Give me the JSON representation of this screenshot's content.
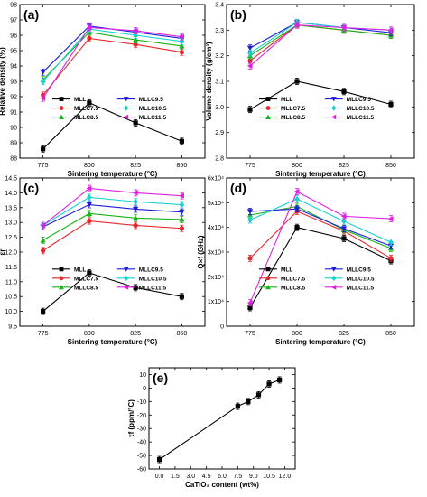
{
  "chart_data": [
    {
      "panel": "(a)",
      "type": "line",
      "x": [
        775,
        800,
        825,
        850
      ],
      "xlabel": "Sintering temperature (°C)",
      "ylabel": "Relative density (%)",
      "ylim": [
        88,
        98
      ],
      "yticks": [
        88,
        89,
        90,
        91,
        92,
        93,
        94,
        95,
        96,
        97,
        98
      ],
      "legend_columns": [
        [
          "MLL",
          "MLLC7.5",
          "MLLC8.5"
        ],
        [
          "MLLC9.5",
          "MLLC10.5",
          "MLLC11.5"
        ]
      ],
      "series": [
        {
          "name": "MLL",
          "color": "#000000",
          "marker": "square",
          "values": [
            88.6,
            91.6,
            90.3,
            89.1
          ]
        },
        {
          "name": "MLLC7.5",
          "color": "#e8262b",
          "marker": "circle",
          "values": [
            92.1,
            95.8,
            95.4,
            94.9
          ]
        },
        {
          "name": "MLLC8.5",
          "color": "#18b418",
          "marker": "triangle-up",
          "values": [
            93.1,
            96.2,
            95.7,
            95.3
          ]
        },
        {
          "name": "MLLC9.5",
          "color": "#1c1cd8",
          "marker": "triangle-down",
          "values": [
            93.6,
            96.6,
            96.2,
            95.8
          ]
        },
        {
          "name": "MLLC10.5",
          "color": "#18d0d0",
          "marker": "diamond",
          "values": [
            93.0,
            96.4,
            96.0,
            95.6
          ]
        },
        {
          "name": "MLLC11.5",
          "color": "#e020e0",
          "marker": "triangle-left",
          "values": [
            91.9,
            96.5,
            96.3,
            95.9
          ]
        }
      ]
    },
    {
      "panel": "(b)",
      "type": "line",
      "x": [
        775,
        800,
        825,
        850
      ],
      "xlabel": "Sintering temperature (°C)",
      "ylabel": "Volume density (g/cm³)",
      "ylim": [
        2.8,
        3.4
      ],
      "yticks": [
        2.8,
        2.9,
        3.0,
        3.1,
        3.2,
        3.3,
        3.4
      ],
      "legend_columns": [
        [
          "MLL",
          "MLLC7.5",
          "MLLC8.5"
        ],
        [
          "MLLC9.5",
          "MLLC10.5",
          "MLLC11.5"
        ]
      ],
      "series": [
        {
          "name": "MLL",
          "color": "#000000",
          "marker": "square",
          "values": [
            2.99,
            3.1,
            3.06,
            3.01
          ]
        },
        {
          "name": "MLLC7.5",
          "color": "#e8262b",
          "marker": "circle",
          "values": [
            3.18,
            3.32,
            3.3,
            3.28
          ]
        },
        {
          "name": "MLLC8.5",
          "color": "#18b418",
          "marker": "triangle-up",
          "values": [
            3.2,
            3.32,
            3.3,
            3.28
          ]
        },
        {
          "name": "MLLC9.5",
          "color": "#1c1cd8",
          "marker": "triangle-down",
          "values": [
            3.23,
            3.33,
            3.31,
            3.29
          ]
        },
        {
          "name": "MLLC10.5",
          "color": "#18d0d0",
          "marker": "diamond",
          "values": [
            3.21,
            3.33,
            3.31,
            3.3
          ]
        },
        {
          "name": "MLLC11.5",
          "color": "#e020e0",
          "marker": "triangle-left",
          "values": [
            3.16,
            3.32,
            3.31,
            3.3
          ]
        }
      ]
    },
    {
      "panel": "(c)",
      "type": "line",
      "x": [
        775,
        800,
        825,
        850
      ],
      "xlabel": "Sintering temperature (°C)",
      "ylabel": "εr",
      "ylim": [
        9.5,
        14.5
      ],
      "yticks": [
        9.5,
        10.0,
        10.5,
        11.0,
        11.5,
        12.0,
        12.5,
        13.0,
        13.5,
        14.0,
        14.5
      ],
      "legend_columns": [
        [
          "MLL",
          "MLLC7.5",
          "MLLC8.5"
        ],
        [
          "MLLC9.5",
          "MLLC10.5",
          "MLLC11.5"
        ]
      ],
      "series": [
        {
          "name": "MLL",
          "color": "#000000",
          "marker": "square",
          "values": [
            10.0,
            11.3,
            10.8,
            10.5
          ]
        },
        {
          "name": "MLLC7.5",
          "color": "#e8262b",
          "marker": "circle",
          "values": [
            12.05,
            13.05,
            12.9,
            12.8
          ]
        },
        {
          "name": "MLLC8.5",
          "color": "#18b418",
          "marker": "triangle-up",
          "values": [
            12.4,
            13.3,
            13.15,
            13.1
          ]
        },
        {
          "name": "MLLC9.5",
          "color": "#1c1cd8",
          "marker": "triangle-down",
          "values": [
            12.85,
            13.6,
            13.45,
            13.35
          ]
        },
        {
          "name": "MLLC10.5",
          "color": "#18d0d0",
          "marker": "diamond",
          "values": [
            12.9,
            13.85,
            13.7,
            13.6
          ]
        },
        {
          "name": "MLLC11.5",
          "color": "#e020e0",
          "marker": "triangle-left",
          "values": [
            12.9,
            14.15,
            14.0,
            13.9
          ]
        }
      ]
    },
    {
      "panel": "(d)",
      "type": "line",
      "x": [
        775,
        800,
        825,
        850
      ],
      "xlabel": "Sintering temperature (°C)",
      "ylabel": "Q×f (GHz)",
      "ylim": [
        0,
        60000
      ],
      "yticks": [
        0,
        10000,
        20000,
        30000,
        40000,
        50000,
        60000
      ],
      "ytick_labels": [
        "0",
        "1x10⁴",
        "2x10⁴",
        "3x10⁴",
        "4x10⁴",
        "5x10⁴",
        "6x10⁴"
      ],
      "legend_columns": [
        [
          "MLL",
          "MLLC7.5",
          "MLLC8.5"
        ],
        [
          "MLLC9.5",
          "MLLC10.5",
          "MLLC11.5"
        ]
      ],
      "series": [
        {
          "name": "MLL",
          "color": "#000000",
          "marker": "square",
          "values": [
            7500,
            40000,
            35500,
            26500
          ]
        },
        {
          "name": "MLLC7.5",
          "color": "#e8262b",
          "marker": "circle",
          "values": [
            27500,
            46500,
            38500,
            27500
          ]
        },
        {
          "name": "MLLC8.5",
          "color": "#18b418",
          "marker": "triangle-up",
          "values": [
            45000,
            48500,
            39000,
            31500
          ]
        },
        {
          "name": "MLLC9.5",
          "color": "#1c1cd8",
          "marker": "triangle-down",
          "values": [
            46500,
            47500,
            39500,
            32500
          ]
        },
        {
          "name": "MLLC10.5",
          "color": "#18d0d0",
          "marker": "diamond",
          "values": [
            43000,
            51500,
            42500,
            34000
          ]
        },
        {
          "name": "MLLC11.5",
          "color": "#e020e0",
          "marker": "triangle-left",
          "values": [
            9500,
            54500,
            44500,
            43500
          ]
        }
      ]
    },
    {
      "panel": "(e)",
      "type": "line",
      "x": [
        0,
        7.5,
        8.5,
        9.5,
        10.5,
        11.5
      ],
      "xlim": [
        -1.0,
        13.0
      ],
      "xticks": [
        0.0,
        1.5,
        3.0,
        4.5,
        6.0,
        7.5,
        9.0,
        10.5,
        12.0
      ],
      "xlabel": "CaTiO₃ content (wt%)",
      "ylabel": "τf (ppm/°C)",
      "ylim": [
        -60,
        15
      ],
      "yticks": [
        -60,
        -50,
        -40,
        -30,
        -20,
        -10,
        0,
        10
      ],
      "series": [
        {
          "color": "#000000",
          "marker": "square",
          "values": [
            -53,
            -13.5,
            -10,
            -5,
            3,
            6
          ]
        }
      ]
    }
  ]
}
